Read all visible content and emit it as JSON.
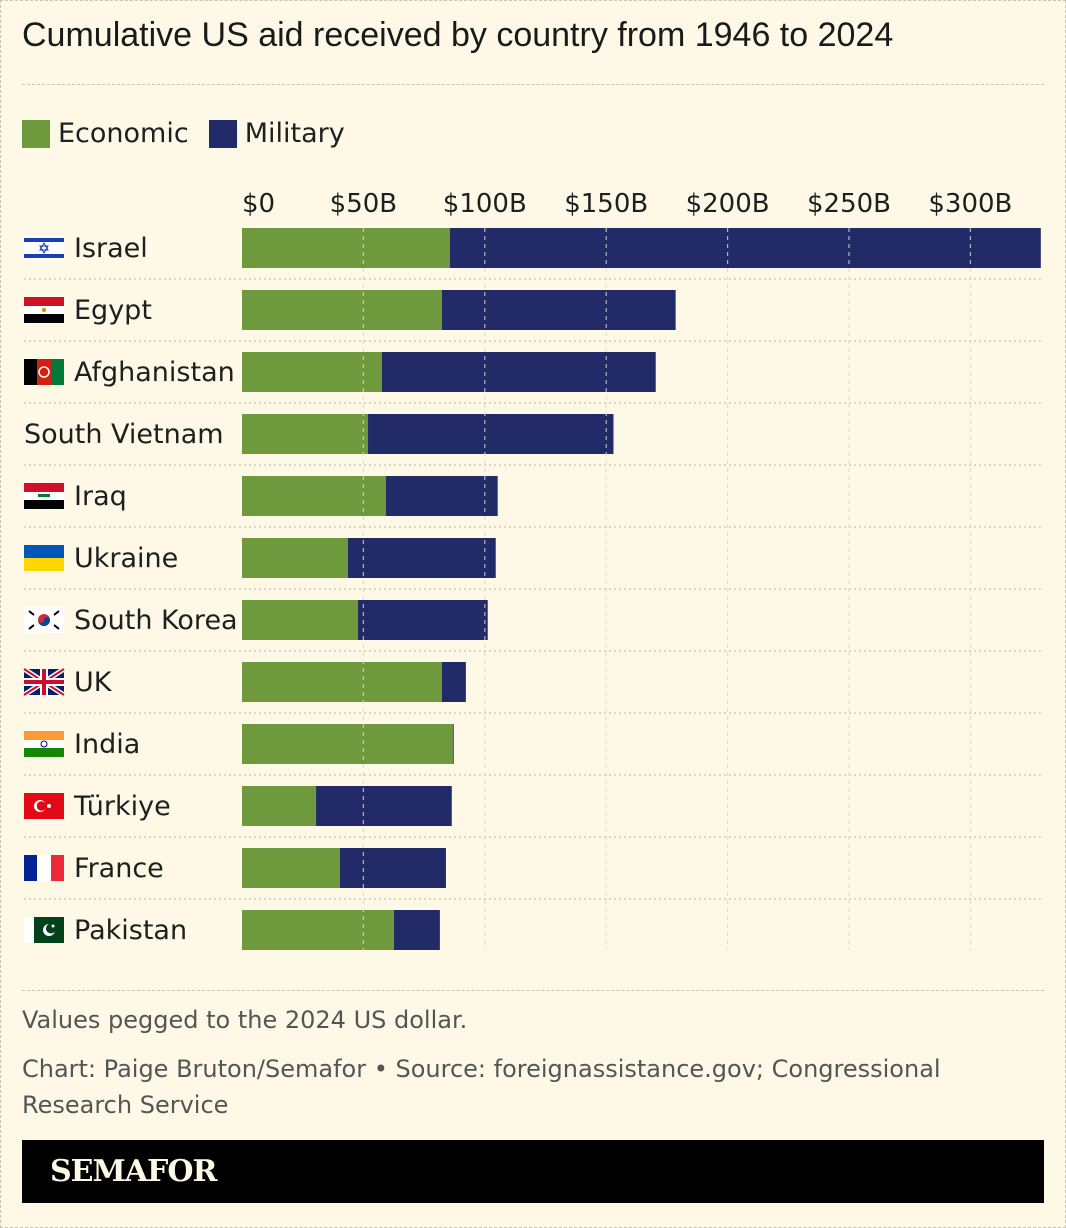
{
  "title": "Cumulative US aid received by country from 1946 to 2024",
  "legend": [
    {
      "label": "Economic",
      "color": "#6e9a3d"
    },
    {
      "label": "Military",
      "color": "#222a68"
    }
  ],
  "chart_data": {
    "type": "bar",
    "orientation": "horizontal",
    "stacked": true,
    "title": "Cumulative US aid received by country from 1946 to 2024",
    "xlim": [
      0,
      330
    ],
    "x_ticks": [
      "$0",
      "$50B",
      "$100B",
      "$150B",
      "$200B",
      "$250B",
      "$300B"
    ],
    "x_tick_values": [
      0,
      50,
      100,
      150,
      200,
      250,
      300
    ],
    "unit": "billion 2024 USD",
    "grid": "vertical dashed",
    "legend_position": "top-left",
    "categories": [
      "Israel",
      "Egypt",
      "Afghanistan",
      "South Vietnam",
      "Iraq",
      "Ukraine",
      "South Korea",
      "UK",
      "India",
      "Türkiye",
      "France",
      "Pakistan"
    ],
    "flags": [
      "israel-flag",
      "egypt-flag",
      "afghanistan-flag",
      "",
      "iraq-flag",
      "ukraine-flag",
      "south-korea-flag",
      "uk-flag",
      "india-flag",
      "turkiye-flag",
      "france-flag",
      "pakistan-flag"
    ],
    "series": [
      {
        "name": "Economic",
        "color": "#6e9a3d",
        "values": [
          85.6,
          82.3,
          57.6,
          51.9,
          59.3,
          43.6,
          47.7,
          82.3,
          86.8,
          30.5,
          40.3,
          62.6
        ]
      },
      {
        "name": "Military",
        "color": "#222a68",
        "values": [
          243.4,
          96.3,
          112.8,
          101.1,
          46.0,
          60.9,
          53.5,
          9.9,
          0.4,
          55.9,
          43.7,
          18.9
        ]
      }
    ]
  },
  "footer": {
    "note": "Values pegged to the 2024 US dollar.",
    "credit": "Chart: Paige Bruton/Semafor • Source: foreignassistance.gov; Congressional Research Service"
  },
  "brand": "SEMAFOR"
}
